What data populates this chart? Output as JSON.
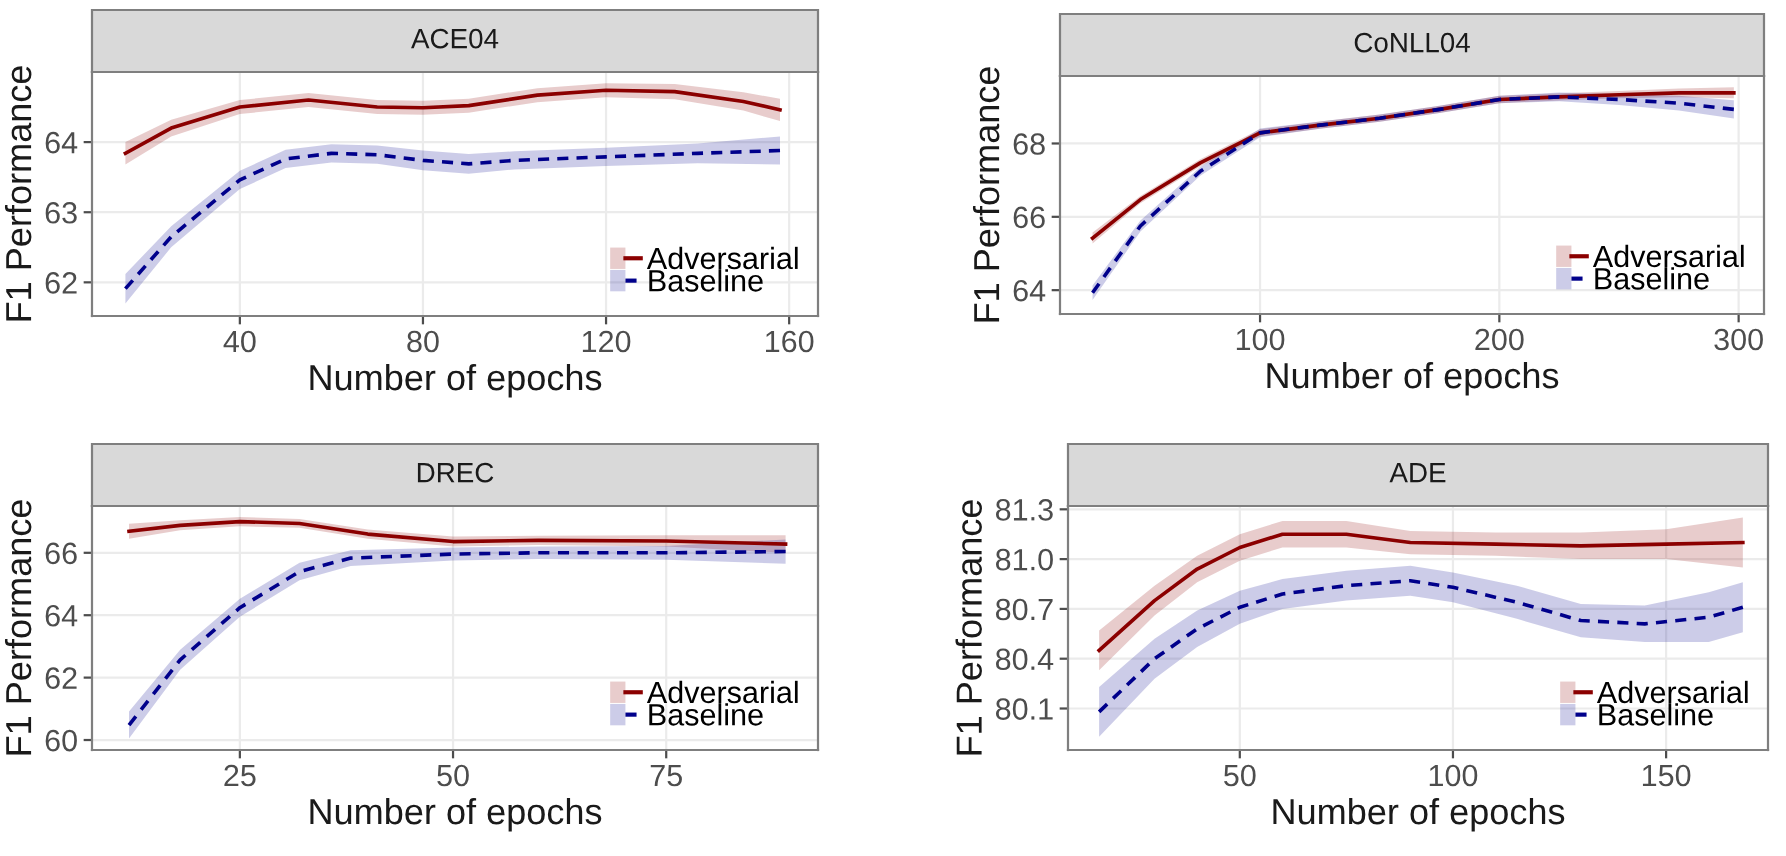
{
  "chart_data": [
    {
      "type": "line",
      "title": "ACE04",
      "xlabel": "Number of epochs",
      "ylabel": "F1 Performance",
      "xlim": [
        7.7,
        166.3
      ],
      "ylim": [
        61.52,
        65.0
      ],
      "xticks": [
        40,
        80,
        120,
        160
      ],
      "yticks": [
        62,
        63,
        64
      ],
      "grid": true,
      "legend": "bottom right",
      "series": [
        {
          "name": "Adversarial",
          "color": "#8b0000",
          "line_style": "solid",
          "x": [
            15,
            25,
            40,
            55,
            70,
            80,
            90,
            105,
            120,
            135,
            150,
            158
          ],
          "values": [
            63.84,
            64.2,
            64.5,
            64.6,
            64.5,
            64.49,
            64.52,
            64.67,
            64.74,
            64.72,
            64.58,
            64.46
          ],
          "lower": [
            63.68,
            64.08,
            64.4,
            64.5,
            64.4,
            64.39,
            64.42,
            64.57,
            64.64,
            64.61,
            64.45,
            64.3
          ],
          "upper": [
            64.0,
            64.32,
            64.6,
            64.7,
            64.6,
            64.59,
            64.62,
            64.77,
            64.84,
            64.83,
            64.71,
            64.62
          ]
        },
        {
          "name": "Baseline",
          "color": "#00008b",
          "line_style": "dashed",
          "x": [
            15,
            25,
            40,
            50,
            60,
            70,
            80,
            90,
            100,
            120,
            140,
            158
          ],
          "values": [
            61.91,
            62.65,
            63.46,
            63.76,
            63.84,
            63.82,
            63.74,
            63.69,
            63.74,
            63.79,
            63.84,
            63.88
          ],
          "lower": [
            61.7,
            62.5,
            63.33,
            63.63,
            63.71,
            63.69,
            63.6,
            63.55,
            63.61,
            63.66,
            63.7,
            63.68
          ],
          "upper": [
            62.12,
            62.8,
            63.59,
            63.89,
            63.97,
            63.95,
            63.88,
            63.83,
            63.87,
            63.92,
            63.98,
            64.08
          ]
        }
      ]
    },
    {
      "type": "line",
      "title": "CoNLL04",
      "xlabel": "Number of epochs",
      "ylabel": "F1 Performance",
      "xlim": [
        16.4,
        310.6
      ],
      "ylim": [
        63.35,
        69.84
      ],
      "xticks": [
        100,
        200,
        300
      ],
      "yticks": [
        64,
        66,
        68
      ],
      "grid": true,
      "legend": "bottom right",
      "series": [
        {
          "name": "Adversarial",
          "color": "#8b0000",
          "line_style": "solid",
          "x": [
            30,
            50,
            75,
            100,
            125,
            150,
            175,
            200,
            225,
            250,
            275,
            298
          ],
          "values": [
            65.42,
            66.47,
            67.47,
            68.29,
            68.5,
            68.69,
            68.93,
            69.2,
            69.27,
            69.33,
            69.38,
            69.38
          ],
          "lower": [
            65.27,
            66.37,
            67.37,
            68.19,
            68.4,
            68.59,
            68.83,
            69.1,
            69.17,
            69.23,
            69.26,
            69.23
          ],
          "upper": [
            65.57,
            66.57,
            67.57,
            68.39,
            68.6,
            68.79,
            69.03,
            69.3,
            69.37,
            69.43,
            69.5,
            69.53
          ]
        },
        {
          "name": "Baseline",
          "color": "#00008b",
          "line_style": "dashed",
          "x": [
            30,
            50,
            75,
            100,
            125,
            150,
            175,
            200,
            225,
            250,
            275,
            298
          ],
          "values": [
            63.93,
            65.75,
            67.24,
            68.29,
            68.5,
            68.69,
            68.93,
            69.2,
            69.27,
            69.2,
            69.1,
            68.93
          ],
          "lower": [
            63.73,
            65.6,
            67.12,
            68.17,
            68.4,
            68.59,
            68.83,
            69.1,
            69.15,
            69.05,
            68.9,
            68.68
          ],
          "upper": [
            64.13,
            65.9,
            67.36,
            68.41,
            68.6,
            68.79,
            69.03,
            69.3,
            69.39,
            69.35,
            69.3,
            69.18
          ]
        }
      ]
    },
    {
      "type": "line",
      "title": "DREC",
      "xlabel": "Number of epochs",
      "ylabel": "F1 Performance",
      "xlim": [
        7.66,
        92.8
      ],
      "ylim": [
        59.68,
        67.5
      ],
      "xticks": [
        25,
        50,
        75
      ],
      "yticks": [
        60,
        62,
        64,
        66
      ],
      "grid": true,
      "legend": "bottom right",
      "series": [
        {
          "name": "Adversarial",
          "color": "#8b0000",
          "line_style": "solid",
          "x": [
            12,
            18,
            25,
            32,
            40,
            50,
            60,
            75,
            89
          ],
          "values": [
            66.69,
            66.88,
            67.0,
            66.94,
            66.6,
            66.36,
            66.4,
            66.38,
            66.28
          ],
          "lower": [
            66.45,
            66.72,
            66.85,
            66.8,
            66.45,
            66.2,
            66.25,
            66.2,
            66.0
          ],
          "upper": [
            66.93,
            67.04,
            67.15,
            67.08,
            66.75,
            66.52,
            66.55,
            66.56,
            66.56
          ]
        },
        {
          "name": "Baseline",
          "color": "#00008b",
          "line_style": "dashed",
          "x": [
            12,
            18,
            25,
            32,
            38,
            50,
            60,
            75,
            89
          ],
          "values": [
            60.48,
            62.57,
            64.24,
            65.4,
            65.83,
            65.96,
            66.0,
            66.0,
            66.04
          ],
          "lower": [
            60.05,
            62.25,
            63.95,
            65.12,
            65.58,
            65.75,
            65.8,
            65.78,
            65.65
          ],
          "upper": [
            60.91,
            62.89,
            64.53,
            65.68,
            66.08,
            66.17,
            66.2,
            66.22,
            66.43
          ]
        }
      ]
    },
    {
      "type": "line",
      "title": "ADE",
      "xlabel": "Number of epochs",
      "ylabel": "F1 Performance",
      "xlim": [
        9.7,
        173.9
      ],
      "ylim": [
        79.85,
        81.32
      ],
      "xticks": [
        50,
        100,
        150
      ],
      "yticks": [
        80.1,
        80.4,
        80.7,
        {
          "value": 81,
          "label": "81.0"
        },
        81.3
      ],
      "grid": true,
      "legend": "bottom right",
      "series": [
        {
          "name": "Adversarial",
          "color": "#8b0000",
          "line_style": "solid",
          "x": [
            17,
            30,
            40,
            50,
            60,
            75,
            90,
            110,
            130,
            150,
            168
          ],
          "values": [
            80.45,
            80.75,
            80.94,
            81.07,
            81.15,
            81.15,
            81.1,
            81.09,
            81.08,
            81.09,
            81.1
          ],
          "lower": [
            80.33,
            80.66,
            80.86,
            80.99,
            81.07,
            81.07,
            81.03,
            81.02,
            81.0,
            81.0,
            80.95
          ],
          "upper": [
            80.57,
            80.84,
            81.02,
            81.15,
            81.23,
            81.23,
            81.17,
            81.16,
            81.16,
            81.18,
            81.25
          ]
        },
        {
          "name": "Baseline",
          "color": "#00008b",
          "line_style": "dashed",
          "x": [
            17,
            30,
            40,
            50,
            60,
            75,
            90,
            100,
            115,
            130,
            145,
            160,
            168
          ],
          "values": [
            80.08,
            80.4,
            80.58,
            80.71,
            80.79,
            80.84,
            80.87,
            80.83,
            80.74,
            80.63,
            80.61,
            80.65,
            80.71
          ],
          "lower": [
            79.93,
            80.28,
            80.47,
            80.61,
            80.7,
            80.75,
            80.78,
            80.74,
            80.64,
            80.53,
            80.5,
            80.5,
            80.56
          ],
          "upper": [
            80.23,
            80.52,
            80.69,
            80.81,
            80.88,
            80.93,
            80.96,
            80.92,
            80.84,
            80.73,
            80.72,
            80.8,
            80.86
          ]
        }
      ]
    }
  ]
}
